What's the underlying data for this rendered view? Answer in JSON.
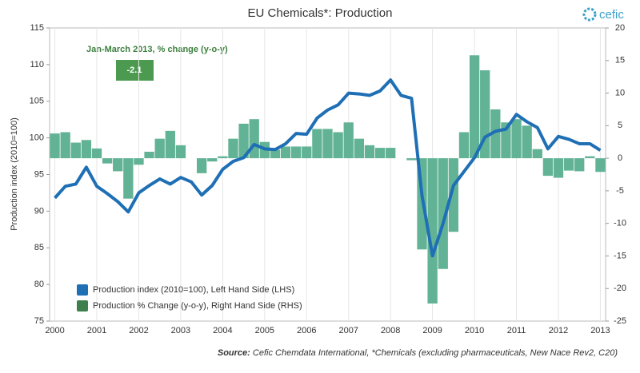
{
  "chart_data": {
    "type": "bar_line",
    "title": "EU Chemicals*: Production",
    "logo": "cefic",
    "annotation": "Jan-March 2013, % change (y-o-y)",
    "annotation_box": "-2.1",
    "ylabel": "Production index (2010=100)",
    "source_label": "Source:",
    "source": "Cefic Chemdata International, *Chemicals (excluding pharmaceuticals, New Nace Rev2, C20)",
    "categories": [
      "2000",
      null,
      null,
      null,
      "2001",
      null,
      null,
      null,
      "2002",
      null,
      null,
      null,
      "2003",
      null,
      null,
      null,
      "2004",
      null,
      null,
      null,
      "2005",
      null,
      null,
      null,
      "2006",
      null,
      null,
      null,
      "2007",
      null,
      null,
      null,
      "2008",
      null,
      null,
      null,
      "2009",
      null,
      null,
      null,
      "2010",
      null,
      null,
      null,
      "2011",
      null,
      null,
      null,
      "2012",
      null,
      null,
      null,
      "2013"
    ],
    "series": [
      {
        "name": "Production  % Change (y-o-y), Right Hand Side (RHS)",
        "type": "bar",
        "axis": "y2",
        "color": "#62b396",
        "values": [
          3.8,
          4.0,
          2.4,
          2.8,
          1.5,
          -0.8,
          -2.0,
          -6.2,
          -1.0,
          1.0,
          3.0,
          4.2,
          2.0,
          0,
          -2.3,
          -0.5,
          0.3,
          3.0,
          5.3,
          6.0,
          2.5,
          1.3,
          1.8,
          1.8,
          1.8,
          4.5,
          4.5,
          4.0,
          5.5,
          3.0,
          2.0,
          1.6,
          1.6,
          0,
          -0.3,
          -14.0,
          -22.3,
          -17.0,
          -11.3,
          4.0,
          15.8,
          13.5,
          7.5,
          5.5,
          6.0,
          5.0,
          1.4,
          -2.7,
          -3.0,
          -1.9,
          -2.0,
          0.3,
          -2.1
        ]
      },
      {
        "name": "Production index (2010=100),  Left Hand Side (LHS)",
        "type": "line",
        "axis": "y",
        "color": "#1f6fb5",
        "values": [
          91.8,
          93.4,
          93.7,
          96.0,
          93.4,
          92.4,
          91.3,
          89.9,
          92.5,
          93.5,
          94.4,
          93.7,
          94.6,
          94.0,
          92.2,
          93.5,
          95.7,
          96.8,
          97.3,
          99.1,
          98.5,
          98.4,
          99.2,
          100.6,
          100.5,
          102.7,
          103.8,
          104.5,
          106.1,
          106.0,
          105.8,
          106.4,
          107.9,
          105.8,
          105.4,
          92.1,
          83.9,
          88.3,
          93.5,
          95.4,
          97.3,
          100.1,
          100.9,
          101.2,
          103.2,
          102.2,
          101.4,
          98.5,
          100.2,
          99.8,
          99.2,
          99.2,
          98.3
        ]
      }
    ],
    "ylim": [
      75,
      115
    ],
    "yticks": [
      75,
      80,
      85,
      90,
      95,
      100,
      105,
      110,
      115
    ],
    "y2lim": [
      -25,
      20
    ],
    "y2ticks": [
      -25,
      -20,
      -15,
      -10,
      -5,
      0,
      5,
      10,
      15,
      20
    ],
    "annotation_color": "#4b9a50"
  }
}
